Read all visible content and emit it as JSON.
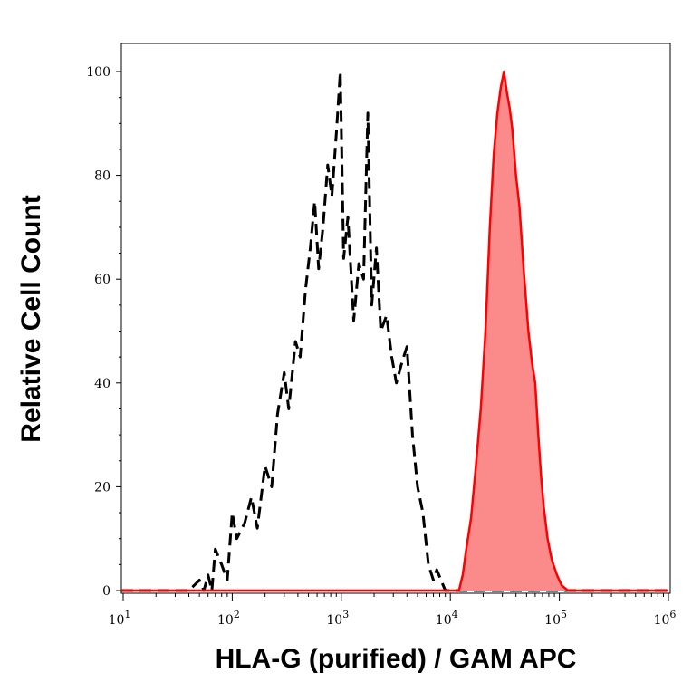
{
  "chart_data": {
    "type": "area",
    "title": "",
    "xlabel": "HLA-G (purified) / GAM APC",
    "ylabel": "Relative Cell Count",
    "x_scale": "log",
    "xlim": [
      10,
      1000000
    ],
    "ylim": [
      0,
      100
    ],
    "x_ticks": [
      {
        "value": 10,
        "base": "10",
        "exp": "1"
      },
      {
        "value": 100,
        "base": "10",
        "exp": "2"
      },
      {
        "value": 1000,
        "base": "10",
        "exp": "3"
      },
      {
        "value": 10000,
        "base": "10",
        "exp": "4"
      },
      {
        "value": 100000,
        "base": "10",
        "exp": "5"
      },
      {
        "value": 1000000,
        "base": "10",
        "exp": "6"
      }
    ],
    "y_ticks": [
      0,
      20,
      40,
      60,
      80,
      100
    ],
    "grid": false,
    "legend": "none",
    "series": [
      {
        "style": "dashed",
        "color": "#000000",
        "fill": "none",
        "points": [
          [
            9,
            0
          ],
          [
            40,
            0
          ],
          [
            50,
            2
          ],
          [
            55,
            0
          ],
          [
            60,
            3
          ],
          [
            65,
            0
          ],
          [
            70,
            8
          ],
          [
            80,
            5
          ],
          [
            90,
            2
          ],
          [
            100,
            15
          ],
          [
            110,
            10
          ],
          [
            130,
            13
          ],
          [
            150,
            18
          ],
          [
            170,
            12
          ],
          [
            200,
            24
          ],
          [
            230,
            20
          ],
          [
            260,
            34
          ],
          [
            300,
            42
          ],
          [
            330,
            35
          ],
          [
            380,
            48
          ],
          [
            420,
            45
          ],
          [
            470,
            58
          ],
          [
            520,
            66
          ],
          [
            570,
            75
          ],
          [
            620,
            62
          ],
          [
            680,
            70
          ],
          [
            750,
            82
          ],
          [
            820,
            76
          ],
          [
            900,
            88
          ],
          [
            980,
            100
          ],
          [
            1050,
            64
          ],
          [
            1150,
            72
          ],
          [
            1300,
            52
          ],
          [
            1450,
            63
          ],
          [
            1600,
            60
          ],
          [
            1750,
            92
          ],
          [
            1900,
            55
          ],
          [
            2100,
            66
          ],
          [
            2300,
            50
          ],
          [
            2600,
            53
          ],
          [
            2900,
            45
          ],
          [
            3200,
            40
          ],
          [
            3600,
            44
          ],
          [
            4000,
            47
          ],
          [
            4500,
            30
          ],
          [
            5000,
            20
          ],
          [
            5600,
            15
          ],
          [
            6300,
            5
          ],
          [
            7000,
            2
          ],
          [
            7500,
            4
          ],
          [
            9000,
            0
          ],
          [
            1000000,
            0
          ]
        ]
      },
      {
        "style": "solid",
        "color": "#ff0000",
        "fill": "#fb8a8a",
        "points": [
          [
            9,
            0
          ],
          [
            12000,
            0
          ],
          [
            13000,
            3
          ],
          [
            14000,
            8
          ],
          [
            15500,
            14
          ],
          [
            17000,
            23
          ],
          [
            19000,
            35
          ],
          [
            21000,
            50
          ],
          [
            23000,
            70
          ],
          [
            25000,
            84
          ],
          [
            27000,
            92
          ],
          [
            29000,
            97
          ],
          [
            31000,
            100
          ],
          [
            33000,
            96
          ],
          [
            35000,
            93
          ],
          [
            37000,
            89
          ],
          [
            40000,
            80
          ],
          [
            43000,
            74
          ],
          [
            47000,
            62
          ],
          [
            52000,
            50
          ],
          [
            56000,
            44
          ],
          [
            60000,
            40
          ],
          [
            64000,
            30
          ],
          [
            68000,
            22
          ],
          [
            72000,
            16
          ],
          [
            78000,
            10
          ],
          [
            85000,
            6
          ],
          [
            95000,
            3
          ],
          [
            105000,
            1
          ],
          [
            120000,
            0
          ],
          [
            1000000,
            0
          ]
        ]
      }
    ]
  }
}
